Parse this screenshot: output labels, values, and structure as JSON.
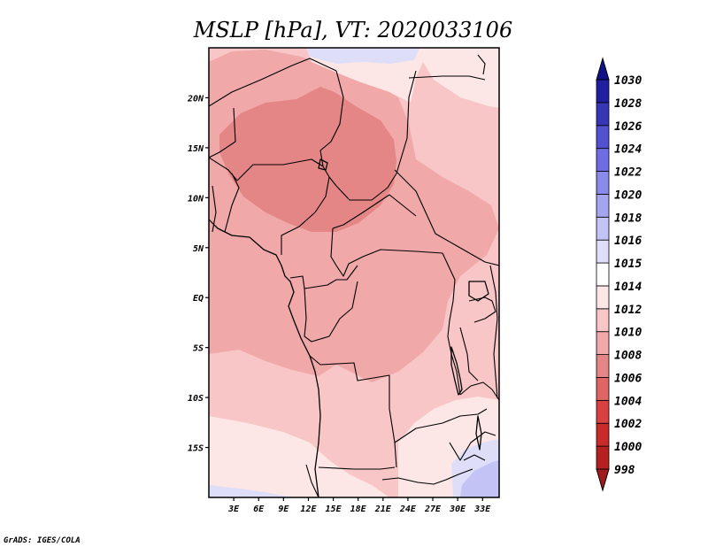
{
  "title": "MSLP [hPa], VT: 2020033106",
  "credit": "GrADS: IGES/COLA",
  "lat_labels": [
    "20N",
    "15N",
    "10N",
    "5N",
    "EQ",
    "5S",
    "10S",
    "15S"
  ],
  "lon_labels": [
    "3E",
    "6E",
    "9E",
    "12E",
    "15E",
    "18E",
    "21E",
    "24E",
    "27E",
    "30E",
    "33E"
  ],
  "map_extent": {
    "lon_range": [
      0,
      35
    ],
    "lat_range": [
      -20,
      25
    ]
  },
  "colorbar": {
    "levels": [
      "998",
      "1000",
      "1002",
      "1004",
      "1006",
      "1008",
      "1010",
      "1012",
      "1014",
      "1015",
      "1016",
      "1018",
      "1020",
      "1022",
      "1024",
      "1026",
      "1028",
      "1030"
    ],
    "colors": [
      "#a01b1b",
      "#b52020",
      "#c92b2b",
      "#d94141",
      "#e06666",
      "#e58686",
      "#f0a8a8",
      "#f8c6c6",
      "#fde6e6",
      "#ffffff",
      "#dedef9",
      "#c3c3f5",
      "#a5a5ef",
      "#8a8aea",
      "#6e6ee2",
      "#5252d0",
      "#3737b6",
      "#1f1fa0",
      "#111188"
    ]
  },
  "pressure_fill_colors": {
    "base": "#f8c6c6",
    "p1010": "#f0a8a8",
    "p1008": "#e58686",
    "p1014": "#fde6e6",
    "p1016": "#dedef9",
    "p1018": "#c3c3f5"
  }
}
